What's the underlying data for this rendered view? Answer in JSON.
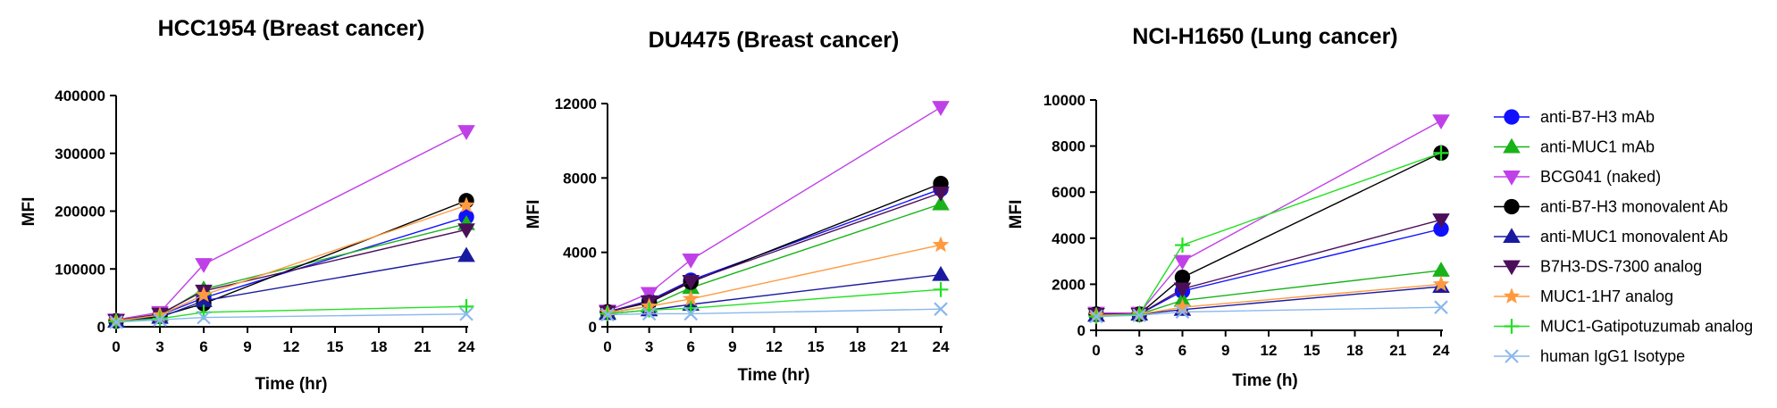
{
  "series_styles": [
    {
      "name": "anti-B7-H3 mAb",
      "color": "#1010ff",
      "marker": "circle"
    },
    {
      "name": "anti-MUC1 mAb",
      "color": "#19b219",
      "marker": "triangle-up"
    },
    {
      "name": "BCG041 (naked)",
      "color": "#c040e8",
      "marker": "triangle-down"
    },
    {
      "name": "anti-B7-H3 monovalent Ab",
      "color": "#000000",
      "marker": "circle"
    },
    {
      "name": "anti-MUC1 monovalent Ab",
      "color": "#1a1aa0",
      "marker": "triangle-up"
    },
    {
      "name": "B7H3-DS-7300 analog",
      "color": "#4b0f5a",
      "marker": "triangle-down"
    },
    {
      "name": "MUC1-1H7 analog",
      "color": "#ff9a40",
      "marker": "star"
    },
    {
      "name": "MUC1-Gatipotuzumab analog",
      "color": "#22e022",
      "marker": "plus"
    },
    {
      "name": "human IgG1 Isotype",
      "color": "#8ab8ee",
      "marker": "x"
    }
  ],
  "chart_data": [
    {
      "type": "line",
      "title": "HCC1954 (Breast cancer)",
      "xlabel": "Time (hr)",
      "ylabel": "MFI",
      "x": [
        0,
        3,
        6,
        24
      ],
      "xticks": [
        "0",
        "3",
        "6",
        "9",
        "12",
        "15",
        "18",
        "21",
        "24"
      ],
      "xlim": [
        0,
        24
      ],
      "yticks": [
        "0",
        "100000",
        "200000",
        "300000",
        "400000"
      ],
      "ylim": [
        0,
        400000
      ],
      "grid": false,
      "series": [
        {
          "name": "anti-B7-H3 mAb",
          "values": [
            10000,
            20000,
            50000,
            190000
          ]
        },
        {
          "name": "anti-MUC1 mAb",
          "values": [
            10000,
            20000,
            65000,
            178000
          ]
        },
        {
          "name": "BCG041 (naked)",
          "values": [
            12000,
            25000,
            108000,
            338000
          ]
        },
        {
          "name": "anti-B7-H3 monovalent Ab",
          "values": [
            10000,
            18000,
            40000,
            218000
          ]
        },
        {
          "name": "anti-MUC1 monovalent Ab",
          "values": [
            9000,
            16000,
            45000,
            123000
          ]
        },
        {
          "name": "B7H3-DS-7300 analog",
          "values": [
            11000,
            22000,
            62000,
            168000
          ]
        },
        {
          "name": "MUC1-1H7 analog",
          "values": [
            10000,
            20000,
            55000,
            210000
          ]
        },
        {
          "name": "MUC1-Gatipotuzumab analog",
          "values": [
            9000,
            14000,
            25000,
            35000
          ]
        },
        {
          "name": "human IgG1 Isotype",
          "values": [
            8000,
            12000,
            16000,
            22000
          ]
        }
      ]
    },
    {
      "type": "line",
      "title": "DU4475 (Breast cancer)",
      "xlabel": "Time (hr)",
      "ylabel": "MFI",
      "x": [
        0,
        3,
        6,
        24
      ],
      "xticks": [
        "0",
        "3",
        "6",
        "9",
        "12",
        "15",
        "18",
        "21",
        "24"
      ],
      "xlim": [
        0,
        24
      ],
      "yticks": [
        "0",
        "4000",
        "8000",
        "12000"
      ],
      "ylim": [
        0,
        12000
      ],
      "grid": false,
      "series": [
        {
          "name": "anti-B7-H3 mAb",
          "values": [
            800,
            1400,
            2500,
            7400
          ]
        },
        {
          "name": "anti-MUC1 mAb",
          "values": [
            750,
            1100,
            2100,
            6600
          ]
        },
        {
          "name": "BCG041 (naked)",
          "values": [
            850,
            1800,
            3600,
            11800
          ]
        },
        {
          "name": "anti-B7-H3 monovalent Ab",
          "values": [
            800,
            1300,
            2400,
            7700
          ]
        },
        {
          "name": "anti-MUC1 monovalent Ab",
          "values": [
            700,
            900,
            1200,
            2800
          ]
        },
        {
          "name": "B7H3-DS-7300 analog",
          "values": [
            800,
            1350,
            2450,
            7200
          ]
        },
        {
          "name": "MUC1-1H7 analog",
          "values": [
            750,
            1100,
            1500,
            4400
          ]
        },
        {
          "name": "MUC1-Gatipotuzumab analog",
          "values": [
            700,
            900,
            1000,
            2000
          ]
        },
        {
          "name": "human IgG1 Isotype",
          "values": [
            650,
            700,
            700,
            950
          ]
        }
      ]
    },
    {
      "type": "line",
      "title": "NCI-H1650 (Lung cancer)",
      "xlabel": "Time (h)",
      "ylabel": "MFI",
      "x": [
        0,
        3,
        6,
        24
      ],
      "xticks": [
        "0",
        "3",
        "6",
        "9",
        "12",
        "15",
        "18",
        "21",
        "24"
      ],
      "xlim": [
        0,
        24
      ],
      "yticks": [
        "0",
        "2000",
        "4000",
        "6000",
        "8000",
        "10000"
      ],
      "ylim": [
        0,
        10000
      ],
      "grid": false,
      "series": [
        {
          "name": "anti-B7-H3 mAb",
          "values": [
            700,
            700,
            1700,
            4400
          ]
        },
        {
          "name": "anti-MUC1 mAb",
          "values": [
            650,
            700,
            1300,
            2600
          ]
        },
        {
          "name": "BCG041 (naked)",
          "values": [
            750,
            750,
            3000,
            9100
          ]
        },
        {
          "name": "anti-B7-H3 monovalent Ab",
          "values": [
            700,
            700,
            2300,
            7700
          ]
        },
        {
          "name": "anti-MUC1 monovalent Ab",
          "values": [
            650,
            700,
            900,
            1900
          ]
        },
        {
          "name": "B7H3-DS-7300 analog",
          "values": [
            700,
            700,
            1800,
            4800
          ]
        },
        {
          "name": "MUC1-1H7 analog",
          "values": [
            650,
            700,
            1000,
            2000
          ]
        },
        {
          "name": "MUC1-Gatipotuzumab analog",
          "values": [
            600,
            700,
            3700,
            7700
          ]
        },
        {
          "name": "human IgG1 Isotype",
          "values": [
            600,
            650,
            800,
            1000
          ]
        }
      ]
    }
  ]
}
